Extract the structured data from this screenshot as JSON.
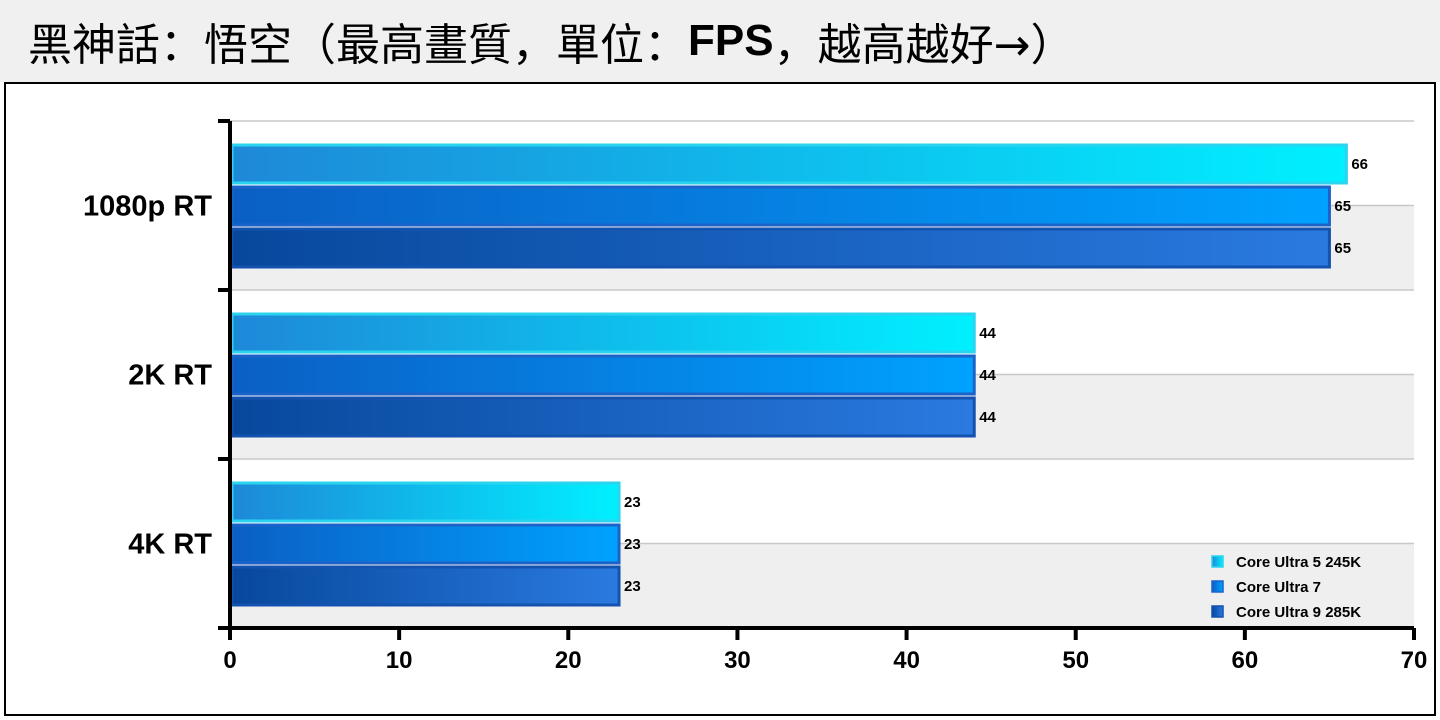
{
  "title": {
    "prefix": "黑神話：悟空（最高畫質，單位：",
    "unit": "FPS",
    "suffix": "，越高越好→）"
  },
  "colors": {
    "series0_start": "#1e88d8",
    "series0_end": "#00f0ff",
    "series0_border": "#2bd4ee",
    "series1_start": "#0b5fc4",
    "series1_end": "#00a2ff",
    "series1_border": "#1b63c8",
    "series2_start": "#07489c",
    "series2_end": "#2a7ae0",
    "series2_border": "#1452b0",
    "band": "#efefef",
    "grid": "#c8c8c8",
    "axis": "#000000"
  },
  "chart_data": {
    "type": "bar",
    "orientation": "horizontal",
    "categories": [
      "1080p RT",
      "2K RT",
      "4K RT"
    ],
    "series": [
      {
        "name": "Core Ultra 5 245K",
        "values": [
          66,
          44,
          23
        ]
      },
      {
        "name": "Core Ultra 7",
        "values": [
          65,
          44,
          23
        ]
      },
      {
        "name": "Core Ultra 9 285K",
        "values": [
          65,
          44,
          23
        ]
      }
    ],
    "x_ticks": [
      "0",
      "10",
      "20",
      "30",
      "40",
      "50",
      "60",
      "70"
    ],
    "xlim": [
      0,
      70
    ],
    "grid": true,
    "legend_position": "bottom-right"
  }
}
